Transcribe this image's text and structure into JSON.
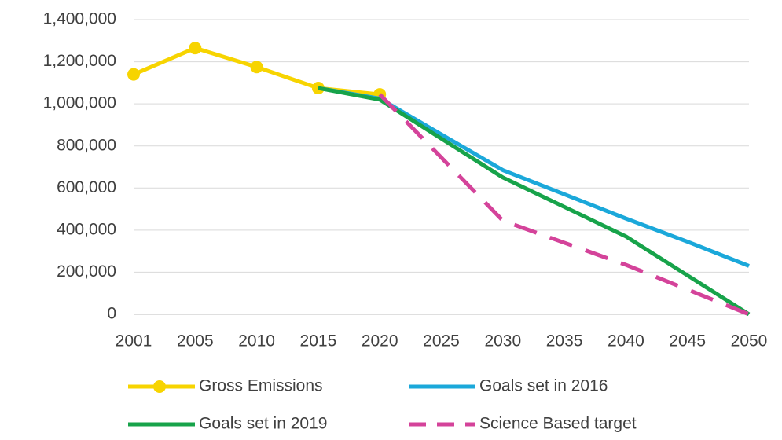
{
  "chart_data": {
    "type": "line",
    "categories": [
      "2001",
      "2005",
      "2010",
      "2015",
      "2020",
      "2025",
      "2030",
      "2035",
      "2040",
      "2045",
      "2050"
    ],
    "series": [
      {
        "name": "Gross Emissions",
        "color": "#f7d400",
        "marker": "circle",
        "dash": "solid",
        "values": [
          1140000,
          1265000,
          1175000,
          1075000,
          1045000,
          null,
          null,
          null,
          null,
          null,
          null
        ]
      },
      {
        "name": "Goals set in 2016",
        "color": "#1ba8da",
        "dash": "solid",
        "values": [
          null,
          null,
          null,
          1075000,
          1025000,
          855000,
          685000,
          570000,
          455000,
          345000,
          230000
        ]
      },
      {
        "name": "Goals set in 2019",
        "color": "#17a34a",
        "dash": "solid",
        "values": [
          null,
          null,
          null,
          1075000,
          1020000,
          835000,
          650000,
          510000,
          370000,
          185000,
          0
        ]
      },
      {
        "name": "Science Based target",
        "color": "#d4439a",
        "dash": "dashed",
        "values": [
          null,
          null,
          null,
          null,
          1045000,
          745000,
          445000,
          340000,
          235000,
          118000,
          0
        ]
      }
    ],
    "ylim": [
      0,
      1400000
    ],
    "yticks": [
      0,
      {
        "value": 200000,
        "label": "200,000"
      },
      {
        "value": 400000,
        "label": "400,000"
      },
      {
        "value": 600000,
        "label": "600,000"
      },
      {
        "value": 800000,
        "label": "800,000"
      },
      {
        "value": 1000000,
        "label": "1,000,000"
      },
      {
        "value": 1200000,
        "label": "1,200,000"
      },
      {
        "value": 1400000,
        "label": "1,400,000"
      }
    ],
    "grid": true,
    "legend": "bottom"
  }
}
